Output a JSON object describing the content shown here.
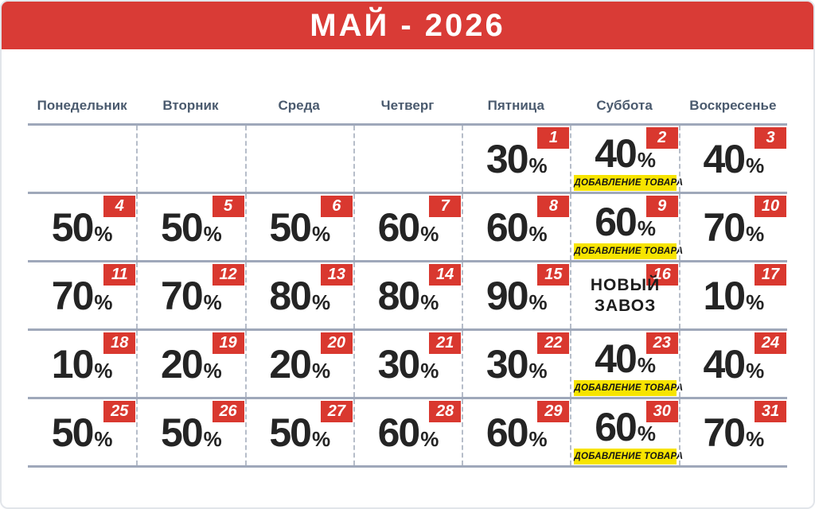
{
  "title": "МАЙ - 2026",
  "weekdays": [
    "Понедельник",
    "Вторник",
    "Среда",
    "Четверг",
    "Пятница",
    "Суббота",
    "Воскресенье"
  ],
  "labels": {
    "restock": "ДОБАВЛЕНИЕ ТОВАРА",
    "new_arrival": "НОВЫЙ\nЗАВОЗ",
    "percent_sign": "%"
  },
  "colors": {
    "header_red": "#D93B36",
    "badge_red": "#D9382F",
    "note_yellow": "#F7E400",
    "weekday_slate": "#4A5A6E",
    "grid_line": "#9FA8BA",
    "dash_line": "#B6BDC9",
    "text_dark": "#242424"
  },
  "weeks": [
    [
      null,
      null,
      null,
      null,
      {
        "day": 1,
        "discount": "30"
      },
      {
        "day": 2,
        "discount": "40",
        "restock": true
      },
      {
        "day": 3,
        "discount": "40"
      }
    ],
    [
      {
        "day": 4,
        "discount": "50"
      },
      {
        "day": 5,
        "discount": "50"
      },
      {
        "day": 6,
        "discount": "50"
      },
      {
        "day": 7,
        "discount": "60"
      },
      {
        "day": 8,
        "discount": "60"
      },
      {
        "day": 9,
        "discount": "60",
        "restock": true
      },
      {
        "day": 10,
        "discount": "70"
      }
    ],
    [
      {
        "day": 11,
        "discount": "70"
      },
      {
        "day": 12,
        "discount": "70"
      },
      {
        "day": 13,
        "discount": "80"
      },
      {
        "day": 14,
        "discount": "80"
      },
      {
        "day": 15,
        "discount": "90"
      },
      {
        "day": 16,
        "new_arrival": true
      },
      {
        "day": 17,
        "discount": "10"
      }
    ],
    [
      {
        "day": 18,
        "discount": "10"
      },
      {
        "day": 19,
        "discount": "20"
      },
      {
        "day": 20,
        "discount": "20"
      },
      {
        "day": 21,
        "discount": "30"
      },
      {
        "day": 22,
        "discount": "30"
      },
      {
        "day": 23,
        "discount": "40",
        "restock": true
      },
      {
        "day": 24,
        "discount": "40"
      }
    ],
    [
      {
        "day": 25,
        "discount": "50"
      },
      {
        "day": 26,
        "discount": "50"
      },
      {
        "day": 27,
        "discount": "50"
      },
      {
        "day": 28,
        "discount": "60"
      },
      {
        "day": 29,
        "discount": "60"
      },
      {
        "day": 30,
        "discount": "60",
        "restock": true
      },
      {
        "day": 31,
        "discount": "70"
      }
    ]
  ]
}
